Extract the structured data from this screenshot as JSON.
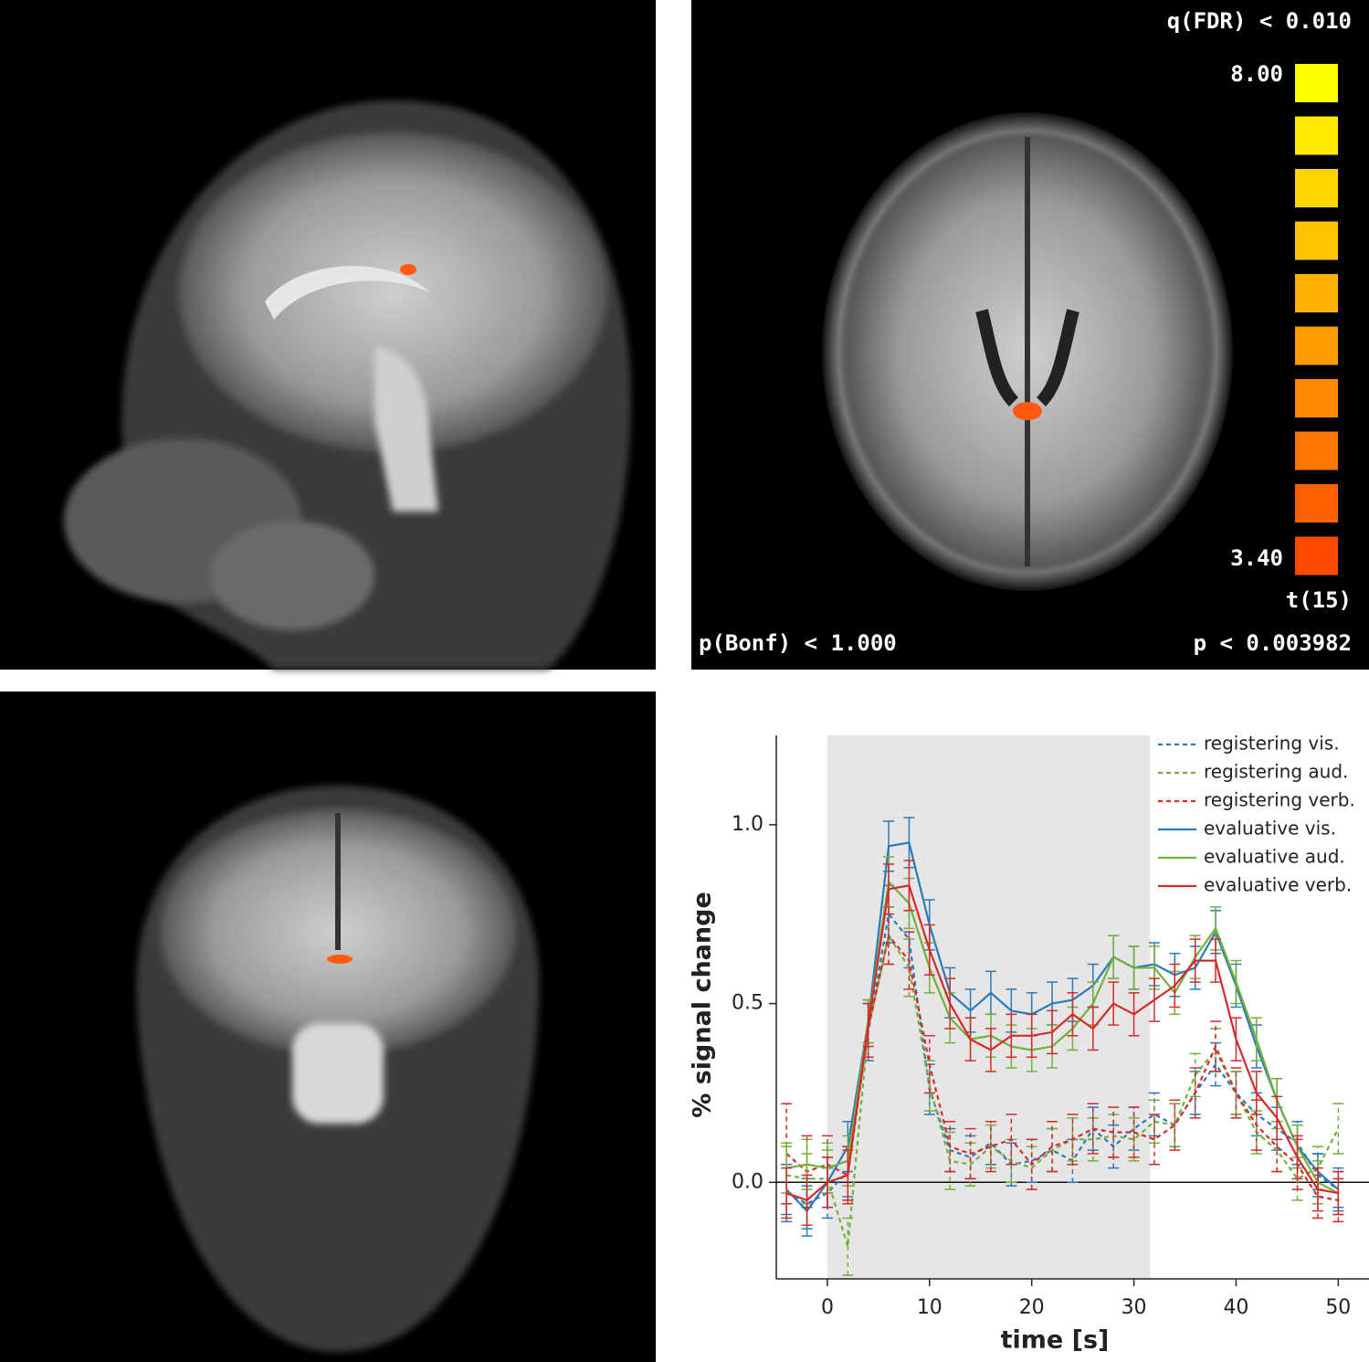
{
  "brain_panels": {
    "fdr_label": "q(FDR) < 0.010",
    "colorbar_max": "8.00",
    "colorbar_min": "3.40",
    "stat_label": "t(15)",
    "bonf_label": "p(Bonf) < 1.000",
    "p_label": "p < 0.003982",
    "colorbar_colors": [
      "#ffff00",
      "#ffea00",
      "#ffd500",
      "#ffc300",
      "#ffb000",
      "#ff9c00",
      "#ff8a00",
      "#ff7500",
      "#ff6000",
      "#ff4a00"
    ]
  },
  "chart_data": {
    "type": "line",
    "xlabel": "time [s]",
    "ylabel": "% signal change",
    "x": [
      -4,
      -2,
      0,
      2,
      4,
      6,
      8,
      10,
      12,
      14,
      16,
      18,
      20,
      22,
      24,
      26,
      28,
      30,
      32,
      34,
      36,
      38,
      40,
      42,
      44,
      46,
      48,
      50
    ],
    "xlim": [
      -5,
      53.1
    ],
    "ylim": [
      -0.27,
      1.25
    ],
    "xticks": [
      0,
      10,
      20,
      30,
      40,
      50
    ],
    "yticks": [
      {
        "value": 0,
        "label": "0.0"
      },
      0.5,
      {
        "value": 1,
        "label": "1.0"
      }
    ],
    "shaded_region": [
      0,
      31.6
    ],
    "legend": "upper right",
    "series": [
      {
        "name": "registering vis.",
        "color": "#2a7ab9",
        "linestyle": "dashed",
        "values": [
          -0.03,
          -0.06,
          -0.03,
          0.03,
          0.42,
          0.75,
          0.68,
          0.26,
          0.09,
          0.07,
          0.11,
          0.05,
          0.06,
          0.09,
          0.06,
          0.15,
          0.1,
          0.15,
          0.19,
          0.16,
          0.25,
          0.33,
          0.25,
          0.19,
          0.15,
          0.11,
          0.02,
          -0.02
        ],
        "errors": [
          0.08,
          0.07,
          0.07,
          0.07,
          0.08,
          0.08,
          0.08,
          0.07,
          0.06,
          0.06,
          0.06,
          0.06,
          0.06,
          0.06,
          0.06,
          0.06,
          0.06,
          0.06,
          0.06,
          0.06,
          0.06,
          0.06,
          0.06,
          0.06,
          0.06,
          0.06,
          0.06,
          0.06
        ]
      },
      {
        "name": "registering aud.",
        "color": "#72b03a",
        "linestyle": "dashed",
        "values": [
          0.02,
          0.01,
          0.01,
          -0.18,
          0.43,
          0.69,
          0.6,
          0.27,
          0.06,
          0.05,
          0.1,
          0.06,
          0.04,
          0.09,
          0.12,
          0.12,
          0.13,
          0.12,
          0.17,
          0.16,
          0.3,
          0.37,
          0.25,
          0.14,
          0.09,
          0.01,
          0.04,
          0.15
        ],
        "errors": [
          0.08,
          0.07,
          0.08,
          0.08,
          0.08,
          0.08,
          0.08,
          0.07,
          0.08,
          0.06,
          0.06,
          0.06,
          0.06,
          0.06,
          0.06,
          0.06,
          0.06,
          0.06,
          0.06,
          0.06,
          0.06,
          0.06,
          0.06,
          0.06,
          0.06,
          0.06,
          0.06,
          0.07
        ]
      },
      {
        "name": "registering verb.",
        "color": "#d62a2a",
        "linestyle": "dashed",
        "values": [
          0.08,
          0.03,
          0.05,
          0.02,
          0.43,
          0.69,
          0.62,
          0.33,
          0.1,
          0.08,
          0.1,
          0.12,
          0.05,
          0.1,
          0.12,
          0.15,
          0.14,
          0.14,
          0.12,
          0.16,
          0.25,
          0.38,
          0.25,
          0.16,
          0.1,
          0.05,
          -0.04,
          -0.05
        ],
        "errors": [
          0.14,
          0.1,
          0.08,
          0.08,
          0.08,
          0.08,
          0.08,
          0.08,
          0.07,
          0.07,
          0.07,
          0.07,
          0.07,
          0.07,
          0.07,
          0.07,
          0.07,
          0.07,
          0.07,
          0.07,
          0.07,
          0.07,
          0.07,
          0.07,
          0.07,
          0.07,
          0.06,
          0.06
        ]
      },
      {
        "name": "evaluative vis.",
        "color": "#2a7ab9",
        "linestyle": "solid",
        "values": [
          -0.02,
          -0.08,
          0.0,
          0.1,
          0.45,
          0.94,
          0.95,
          0.72,
          0.53,
          0.48,
          0.53,
          0.48,
          0.47,
          0.5,
          0.51,
          0.55,
          0.63,
          0.6,
          0.61,
          0.58,
          0.6,
          0.7,
          0.55,
          0.38,
          0.23,
          0.1,
          0.03,
          -0.02
        ],
        "errors": [
          0.07,
          0.07,
          0.07,
          0.07,
          0.06,
          0.07,
          0.07,
          0.07,
          0.07,
          0.06,
          0.06,
          0.06,
          0.06,
          0.06,
          0.06,
          0.06,
          0.06,
          0.06,
          0.06,
          0.06,
          0.06,
          0.06,
          0.06,
          0.06,
          0.06,
          0.06,
          0.05,
          0.05
        ]
      },
      {
        "name": "evaluative aud.",
        "color": "#72b03a",
        "linestyle": "solid",
        "values": [
          0.04,
          0.05,
          0.04,
          0.06,
          0.45,
          0.84,
          0.78,
          0.6,
          0.46,
          0.4,
          0.41,
          0.38,
          0.37,
          0.38,
          0.43,
          0.5,
          0.63,
          0.6,
          0.6,
          0.53,
          0.63,
          0.71,
          0.56,
          0.4,
          0.23,
          0.1,
          0.0,
          -0.03
        ],
        "errors": [
          0.07,
          0.07,
          0.07,
          0.07,
          0.06,
          0.07,
          0.07,
          0.07,
          0.07,
          0.06,
          0.06,
          0.06,
          0.06,
          0.06,
          0.06,
          0.06,
          0.06,
          0.06,
          0.06,
          0.06,
          0.06,
          0.06,
          0.06,
          0.06,
          0.06,
          0.06,
          0.06,
          0.06
        ]
      },
      {
        "name": "evaluative verb.",
        "color": "#d62a2a",
        "linestyle": "solid",
        "values": [
          -0.03,
          -0.05,
          0.0,
          0.02,
          0.44,
          0.82,
          0.83,
          0.65,
          0.5,
          0.4,
          0.37,
          0.41,
          0.41,
          0.42,
          0.47,
          0.43,
          0.5,
          0.47,
          0.51,
          0.55,
          0.62,
          0.62,
          0.4,
          0.25,
          0.18,
          0.07,
          -0.02,
          -0.03
        ],
        "errors": [
          0.07,
          0.07,
          0.07,
          0.07,
          0.06,
          0.07,
          0.07,
          0.07,
          0.07,
          0.06,
          0.06,
          0.06,
          0.06,
          0.06,
          0.06,
          0.06,
          0.06,
          0.06,
          0.06,
          0.06,
          0.06,
          0.06,
          0.06,
          0.06,
          0.06,
          0.06,
          0.06,
          0.06
        ]
      }
    ]
  }
}
